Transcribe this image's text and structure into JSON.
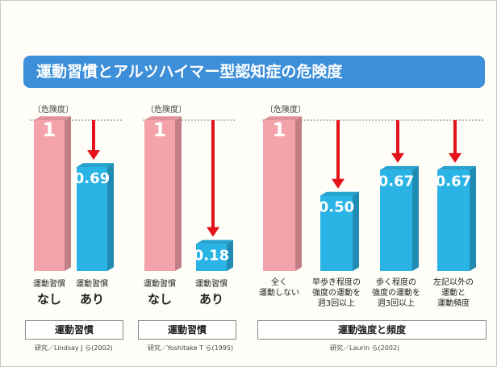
{
  "title": "運動習慣とアルツハイマー型認知症の危険度",
  "chart_data": [
    {
      "type": "bar",
      "y_label": "〔危険度〕",
      "categories": [
        "運動習慣\nなし",
        "運動習慣\nあり"
      ],
      "values": [
        1,
        0.69
      ],
      "colors": [
        "#f5a3aa",
        "#2ab4e6"
      ],
      "ylim": [
        0,
        1
      ],
      "group_label": "運動習慣",
      "source": "研究／Lindsay J ら(2002)"
    },
    {
      "type": "bar",
      "y_label": "〔危険度〕",
      "categories": [
        "運動習慣\nなし",
        "運動習慣\nあり"
      ],
      "values": [
        1,
        0.18
      ],
      "colors": [
        "#f5a3aa",
        "#2ab4e6"
      ],
      "ylim": [
        0,
        1
      ],
      "group_label": "運動習慣",
      "source": "研究／Yoshitake T ら(1995)"
    },
    {
      "type": "bar",
      "y_label": "〔危険度〕",
      "categories": [
        "全く\n運動しない",
        "早歩き程度の\n強度の運動を\n週3回以上",
        "歩く程度の\n強度の運動を\n週3回以上",
        "左記以外の\n運動と\n運動頻度"
      ],
      "values": [
        1,
        0.5,
        0.67,
        0.67
      ],
      "value_labels": [
        "1",
        "0.50",
        "0.67",
        "0.67"
      ],
      "colors": [
        "#f5a3aa",
        "#2ab4e6",
        "#2ab4e6",
        "#2ab4e6"
      ],
      "ylim": [
        0,
        1
      ],
      "group_label": "運動強度と頻度",
      "source": "研究／Laurin ら(2002)"
    }
  ]
}
